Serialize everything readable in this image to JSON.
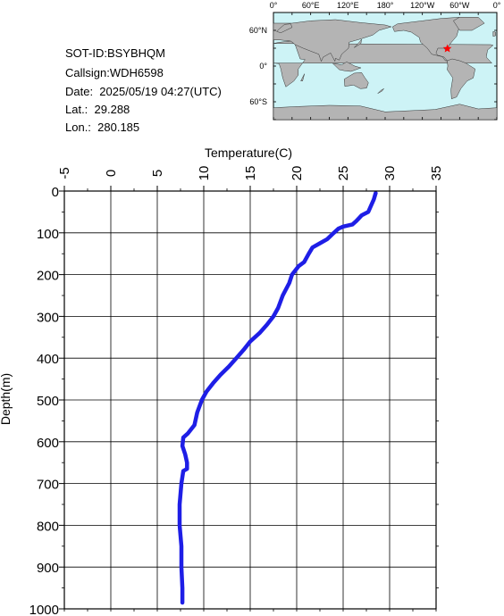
{
  "info": {
    "sot_id": "SOT-ID:BSYBHQM",
    "callsign": "Callsign:WDH6598",
    "date": "Date:  2025/05/19 04:27(UTC)",
    "lat": "Lat.:  29.288",
    "lon": "Lon.:  280.185"
  },
  "map": {
    "lon_labels": [
      "0°",
      "60°E",
      "120°E",
      "180°",
      "120°W",
      "60°W",
      "0°"
    ],
    "lat_labels": [
      "60°N",
      "0°",
      "60°S"
    ],
    "ocean_color": "#cdf3f6",
    "land_color": "#b4b4b4",
    "marker_color": "#ff0000",
    "marker": {
      "lat": 29.288,
      "lon": 280.185
    }
  },
  "chart_data": {
    "type": "line",
    "title": "",
    "xlabel": "Temperature(C)",
    "ylabel": "Depth(m)",
    "xlim": [
      -5,
      35
    ],
    "ylim": [
      1000,
      0
    ],
    "x_ticks": [
      "-5",
      "0",
      "5",
      "10",
      "15",
      "20",
      "25",
      "30",
      "35"
    ],
    "y_ticks": [
      "0",
      "100",
      "200",
      "300",
      "400",
      "500",
      "600",
      "700",
      "800",
      "900",
      "1000"
    ],
    "grid": true,
    "line_color": "#1e1ee6",
    "series": [
      {
        "points": [
          [
            28.5,
            5
          ],
          [
            28.3,
            20
          ],
          [
            28.0,
            35
          ],
          [
            27.7,
            50
          ],
          [
            27.0,
            58
          ],
          [
            26.7,
            65
          ],
          [
            26.4,
            72
          ],
          [
            26.0,
            80
          ],
          [
            25.0,
            85
          ],
          [
            24.5,
            90
          ],
          [
            24.0,
            100
          ],
          [
            23.3,
            115
          ],
          [
            22.5,
            125
          ],
          [
            21.7,
            135
          ],
          [
            21.3,
            150
          ],
          [
            20.8,
            170
          ],
          [
            20.2,
            180
          ],
          [
            19.5,
            200
          ],
          [
            19.2,
            220
          ],
          [
            18.5,
            250
          ],
          [
            18.0,
            280
          ],
          [
            17.5,
            300
          ],
          [
            16.8,
            320
          ],
          [
            16.0,
            340
          ],
          [
            15.0,
            360
          ],
          [
            14.3,
            380
          ],
          [
            13.5,
            400
          ],
          [
            12.7,
            420
          ],
          [
            11.8,
            440
          ],
          [
            11.0,
            460
          ],
          [
            10.3,
            480
          ],
          [
            9.8,
            500
          ],
          [
            9.3,
            530
          ],
          [
            9.0,
            560
          ],
          [
            8.3,
            580
          ],
          [
            7.8,
            590
          ],
          [
            7.7,
            610
          ],
          [
            8.0,
            630
          ],
          [
            8.2,
            650
          ],
          [
            8.2,
            665
          ],
          [
            7.8,
            670
          ],
          [
            7.6,
            700
          ],
          [
            7.4,
            750
          ],
          [
            7.4,
            800
          ],
          [
            7.6,
            850
          ],
          [
            7.6,
            900
          ],
          [
            7.7,
            950
          ],
          [
            7.7,
            985
          ]
        ]
      }
    ]
  }
}
